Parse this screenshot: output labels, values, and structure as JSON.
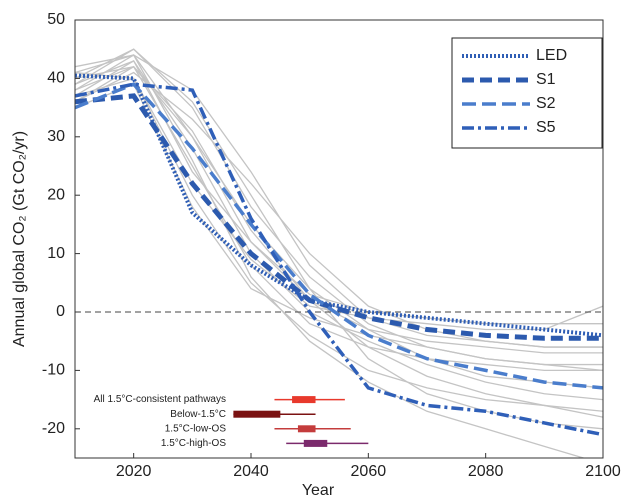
{
  "chart_data": {
    "type": "line",
    "ylabel": "Annual global CO₂ (Gt CO₂/yr)",
    "xlabel": "Year",
    "x": [
      2010,
      2020,
      2030,
      2040,
      2050,
      2060,
      2070,
      2080,
      2090,
      2100
    ],
    "xlim": [
      2010,
      2100
    ],
    "xticks": [
      2020,
      2040,
      2060,
      2080,
      2100
    ],
    "ylim": [
      -25,
      50
    ],
    "yticks": [
      -20,
      -10,
      0,
      10,
      20,
      30,
      40,
      50
    ],
    "reference_line": 0,
    "legend": "upper right",
    "background_color": "#c4c4c4",
    "background_pathways": [
      [
        41,
        44,
        30,
        12,
        2,
        -3,
        -5,
        -6,
        -7,
        -7
      ],
      [
        38,
        42,
        25,
        8,
        -2,
        -6,
        -8,
        -9,
        -10,
        -10
      ],
      [
        40,
        45,
        35,
        18,
        6,
        -2,
        -6,
        -8,
        -9,
        -9
      ],
      [
        37,
        40,
        20,
        5,
        -4,
        -10,
        -13,
        -15,
        -16,
        -17
      ],
      [
        39,
        43,
        28,
        10,
        0,
        -5,
        -9,
        -12,
        -14,
        -15
      ],
      [
        36,
        41,
        33,
        22,
        10,
        1,
        -3,
        -5,
        -6,
        -6
      ],
      [
        42,
        44,
        26,
        6,
        -5,
        -12,
        -17,
        -20,
        -23,
        -26
      ],
      [
        38,
        44,
        38,
        24,
        8,
        -1,
        -4,
        -5,
        -6,
        -6
      ],
      [
        35,
        39,
        18,
        4,
        -1,
        -4,
        -6,
        -8,
        -9,
        -10
      ],
      [
        40,
        42,
        30,
        15,
        4,
        -3,
        -8,
        -11,
        -12,
        -13
      ],
      [
        37,
        43,
        24,
        12,
        3,
        0,
        -1,
        -2,
        -2,
        -2
      ],
      [
        39,
        45,
        36,
        20,
        4,
        -8,
        -14,
        -17,
        -19,
        -20
      ],
      [
        41,
        40,
        22,
        9,
        1,
        -1,
        -2,
        -3,
        -3,
        1
      ],
      [
        36,
        42,
        31,
        14,
        2,
        -6,
        -11,
        -14,
        -16,
        -18
      ]
    ],
    "series": [
      {
        "name": "LED",
        "color": "#2f5eb5",
        "dash": "2 2",
        "width": 4,
        "values": [
          40.5,
          40,
          17,
          8,
          2,
          0,
          -1,
          -2,
          -3,
          -4
        ]
      },
      {
        "name": "S1",
        "color": "#2c5aae",
        "dash": "12 6",
        "width": 5,
        "values": [
          36,
          37,
          22,
          10,
          2,
          -1,
          -3,
          -4,
          -4.5,
          -4.5
        ]
      },
      {
        "name": "S2",
        "color": "#4a7dcc",
        "dash": "14 6",
        "width": 3.5,
        "values": [
          35,
          39,
          28,
          15,
          3,
          -4,
          -8,
          -10,
          -12,
          -13
        ]
      },
      {
        "name": "S5",
        "color": "#2f5fb8",
        "dash": "12 4 3 4",
        "width": 3.5,
        "values": [
          37,
          39,
          38,
          16,
          0,
          -13,
          -16,
          -17,
          -19,
          -21
        ]
      }
    ],
    "net_zero_ranges": [
      {
        "label": "All 1.5°C-consistent pathways",
        "color": "#e8392c",
        "y": -15,
        "whisker": [
          2044,
          2056
        ],
        "box": [
          2047,
          2051
        ]
      },
      {
        "label": "Below-1.5°C",
        "color": "#7b1212",
        "y": -17.5,
        "whisker": [
          2037,
          2051
        ],
        "box": [
          2037,
          2045
        ]
      },
      {
        "label": "1.5°C-low-OS",
        "color": "#c43c3c",
        "y": -20,
        "whisker": [
          2044,
          2057
        ],
        "box": [
          2048,
          2051
        ]
      },
      {
        "label": "1.5°C-high-OS",
        "color": "#7b2a6c",
        "y": -22.5,
        "whisker": [
          2046,
          2060
        ],
        "box": [
          2049,
          2053
        ]
      }
    ]
  }
}
